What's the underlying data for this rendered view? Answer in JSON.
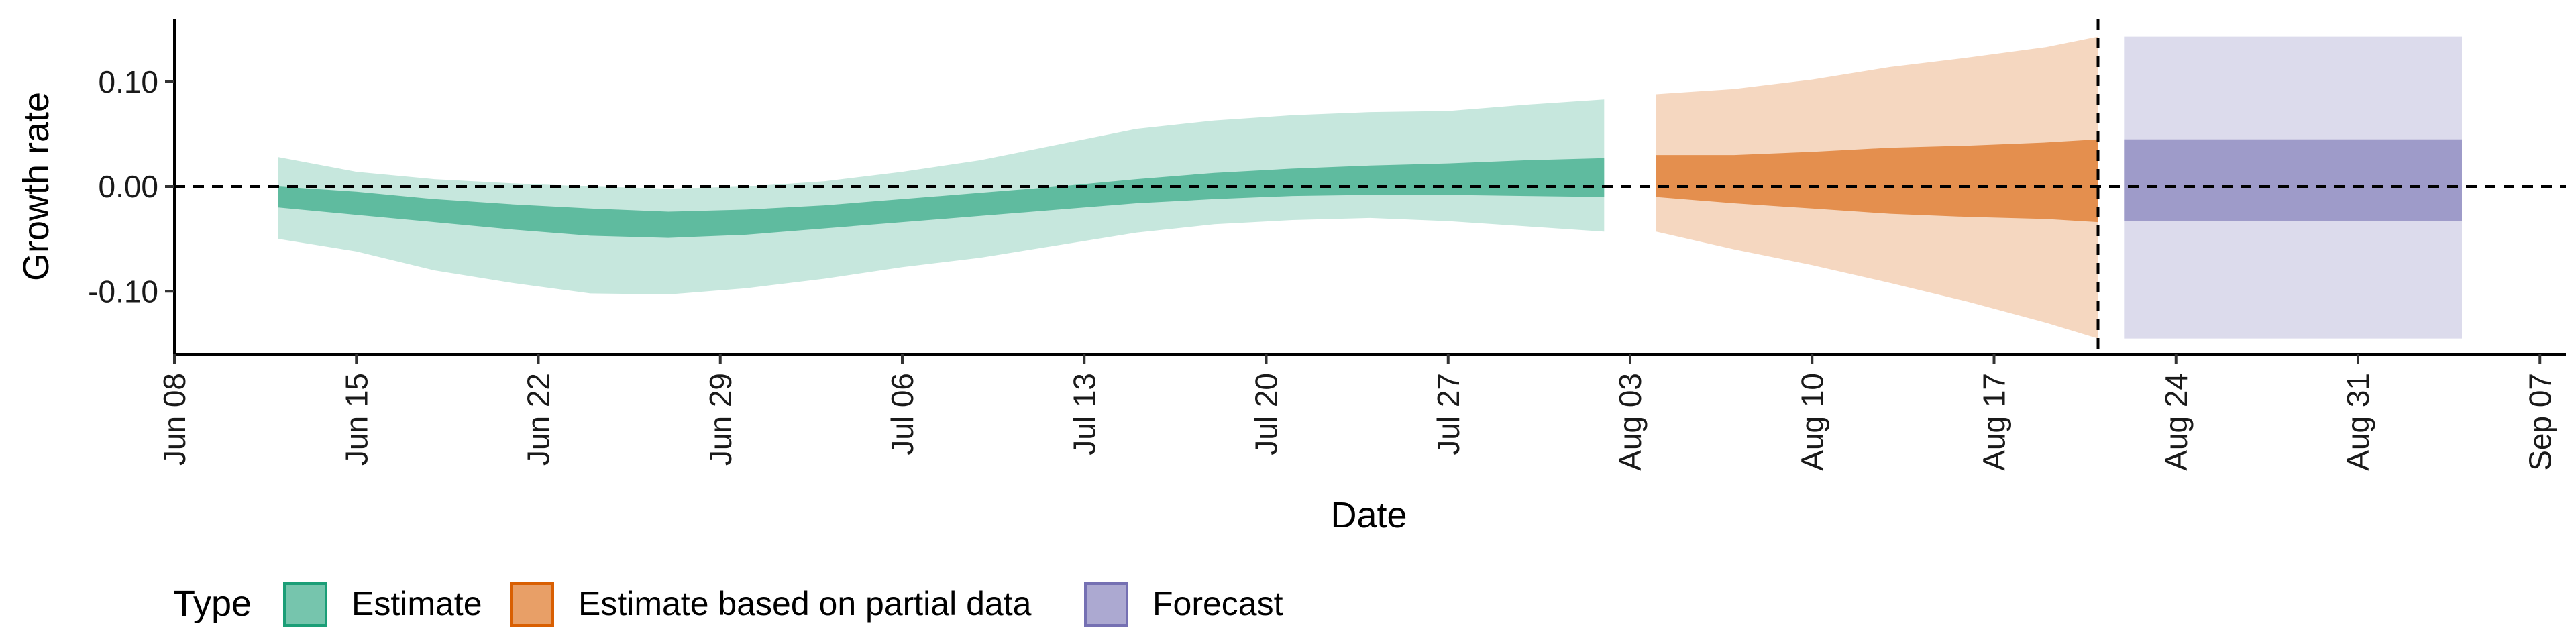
{
  "chart_data": {
    "type": "area",
    "title": "",
    "xlabel": "Date",
    "ylabel": "Growth rate",
    "x_ticks": [
      "Jun 08",
      "Jun 15",
      "Jun 22",
      "Jun 29",
      "Jul 06",
      "Jul 13",
      "Jul 20",
      "Jul 27",
      "Aug 03",
      "Aug 10",
      "Aug 17",
      "Aug 24",
      "Aug 31",
      "Sep 07"
    ],
    "x_tick_dates": [
      "2020-06-08",
      "2020-06-15",
      "2020-06-22",
      "2020-06-29",
      "2020-07-06",
      "2020-07-13",
      "2020-07-20",
      "2020-07-27",
      "2020-08-03",
      "2020-08-10",
      "2020-08-17",
      "2020-08-24",
      "2020-08-31",
      "2020-09-07"
    ],
    "xlim": [
      "2020-06-08",
      "2020-09-08"
    ],
    "y_ticks": [
      0.1,
      0.0,
      -0.1
    ],
    "y_tick_labels": [
      "0.10",
      "0.00",
      "-0.10"
    ],
    "ylim": [
      -0.16,
      0.16
    ],
    "hline_y": 0.0,
    "forecast_start": "2020-08-21",
    "grid": false,
    "legend": {
      "title": "Type",
      "position": "bottom",
      "entries": [
        {
          "label": "Estimate",
          "color": "#1b9e77"
        },
        {
          "label": "Estimate based on partial data",
          "color": "#d95f02"
        },
        {
          "label": "Forecast",
          "color": "#7570b3"
        }
      ]
    },
    "series": [
      {
        "name": "Estimate",
        "color": "#1b9e77",
        "points": [
          {
            "date": "2020-06-12",
            "lo90": -0.05,
            "lo50": -0.02,
            "hi50": 0.0,
            "hi90": 0.028
          },
          {
            "date": "2020-06-15",
            "lo90": -0.062,
            "lo50": -0.027,
            "hi50": -0.005,
            "hi90": 0.014
          },
          {
            "date": "2020-06-18",
            "lo90": -0.08,
            "lo50": -0.034,
            "hi50": -0.012,
            "hi90": 0.007
          },
          {
            "date": "2020-06-21",
            "lo90": -0.092,
            "lo50": -0.041,
            "hi50": -0.017,
            "hi90": 0.003
          },
          {
            "date": "2020-06-24",
            "lo90": -0.102,
            "lo50": -0.047,
            "hi50": -0.021,
            "hi90": 0.0
          },
          {
            "date": "2020-06-27",
            "lo90": -0.103,
            "lo50": -0.049,
            "hi50": -0.024,
            "hi90": -0.002
          },
          {
            "date": "2020-06-30",
            "lo90": -0.097,
            "lo50": -0.046,
            "hi50": -0.022,
            "hi90": 0.0
          },
          {
            "date": "2020-07-03",
            "lo90": -0.088,
            "lo50": -0.04,
            "hi50": -0.018,
            "hi90": 0.005
          },
          {
            "date": "2020-07-06",
            "lo90": -0.077,
            "lo50": -0.034,
            "hi50": -0.012,
            "hi90": 0.014
          },
          {
            "date": "2020-07-09",
            "lo90": -0.068,
            "lo50": -0.028,
            "hi50": -0.006,
            "hi90": 0.025
          },
          {
            "date": "2020-07-12",
            "lo90": -0.056,
            "lo50": -0.022,
            "hi50": 0.0,
            "hi90": 0.04
          },
          {
            "date": "2020-07-15",
            "lo90": -0.044,
            "lo50": -0.016,
            "hi50": 0.007,
            "hi90": 0.055
          },
          {
            "date": "2020-07-18",
            "lo90": -0.036,
            "lo50": -0.012,
            "hi50": 0.013,
            "hi90": 0.063
          },
          {
            "date": "2020-07-21",
            "lo90": -0.032,
            "lo50": -0.009,
            "hi50": 0.017,
            "hi90": 0.068
          },
          {
            "date": "2020-07-24",
            "lo90": -0.03,
            "lo50": -0.008,
            "hi50": 0.02,
            "hi90": 0.071
          },
          {
            "date": "2020-07-27",
            "lo90": -0.033,
            "lo50": -0.008,
            "hi50": 0.022,
            "hi90": 0.072
          },
          {
            "date": "2020-07-30",
            "lo90": -0.038,
            "lo50": -0.009,
            "hi50": 0.025,
            "hi90": 0.078
          },
          {
            "date": "2020-08-02",
            "lo90": -0.043,
            "lo50": -0.01,
            "hi50": 0.027,
            "hi90": 0.083
          }
        ]
      },
      {
        "name": "Estimate based on partial data",
        "color": "#d95f02",
        "points": [
          {
            "date": "2020-08-04",
            "lo90": -0.043,
            "lo50": -0.01,
            "hi50": 0.03,
            "hi90": 0.088
          },
          {
            "date": "2020-08-07",
            "lo90": -0.06,
            "lo50": -0.016,
            "hi50": 0.03,
            "hi90": 0.093
          },
          {
            "date": "2020-08-10",
            "lo90": -0.075,
            "lo50": -0.021,
            "hi50": 0.033,
            "hi90": 0.102
          },
          {
            "date": "2020-08-13",
            "lo90": -0.092,
            "lo50": -0.026,
            "hi50": 0.037,
            "hi90": 0.114
          },
          {
            "date": "2020-08-16",
            "lo90": -0.11,
            "lo50": -0.029,
            "hi50": 0.039,
            "hi90": 0.123
          },
          {
            "date": "2020-08-19",
            "lo90": -0.13,
            "lo50": -0.031,
            "hi50": 0.042,
            "hi90": 0.133
          },
          {
            "date": "2020-08-21",
            "lo90": -0.145,
            "lo50": -0.034,
            "hi50": 0.045,
            "hi90": 0.143
          }
        ]
      },
      {
        "name": "Forecast",
        "color": "#7570b3",
        "points": [
          {
            "date": "2020-08-22",
            "lo90": -0.145,
            "lo50": -0.033,
            "hi50": 0.045,
            "hi90": 0.143
          },
          {
            "date": "2020-09-04",
            "lo90": -0.145,
            "lo50": -0.033,
            "hi50": 0.045,
            "hi90": 0.143
          }
        ]
      }
    ]
  }
}
